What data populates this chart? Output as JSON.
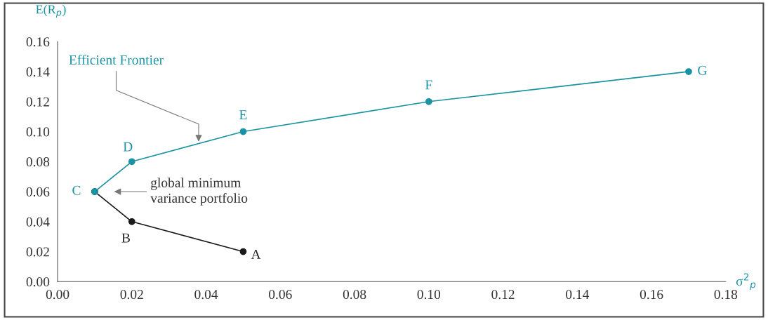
{
  "chart_data": {
    "type": "line",
    "xlabel": "σ$^{2}$$_{p}$",
    "ylabel": "E(R$_{p}$)",
    "series": [
      {
        "color": "#1a1a1a",
        "x": [
          0.01,
          0.02,
          0.05
        ],
        "values": [
          0.06,
          0.04,
          0.02
        ]
      },
      {
        "color": "#1a93a3",
        "x": [
          0.01,
          0.02,
          0.05,
          0.1,
          0.17
        ],
        "values": [
          0.06,
          0.08,
          0.1,
          0.12,
          0.14
        ]
      }
    ],
    "marker": "circle",
    "line_style": "solid",
    "grid": false,
    "legend": false,
    "xlim": [
      0,
      0.18
    ],
    "ylim": [
      0,
      0.16
    ],
    "xticks": [
      {
        "value": 0,
        "label": "0.00"
      },
      {
        "value": 0.02,
        "label": "0.02"
      },
      {
        "value": 0.04,
        "label": "0.04"
      },
      {
        "value": 0.06,
        "label": "0.06"
      },
      {
        "value": 0.08,
        "label": "0.08"
      },
      {
        "value": 0.1,
        "label": "0.10"
      },
      {
        "value": 0.12,
        "label": "0.12"
      },
      {
        "value": 0.14,
        "label": "0.14"
      },
      {
        "value": 0.16,
        "label": "0.16"
      },
      {
        "value": 0.18,
        "label": "0.18"
      }
    ],
    "yticks": [
      {
        "value": 0,
        "label": "0.00"
      },
      {
        "value": 0.02,
        "label": "0.02"
      },
      {
        "value": 0.04,
        "label": "0.04"
      },
      {
        "value": 0.06,
        "label": "0.06"
      },
      {
        "value": 0.08,
        "label": "0.08"
      },
      {
        "value": 0.1,
        "label": "0.10"
      },
      {
        "value": 0.12,
        "label": "0.12"
      },
      {
        "value": 0.14,
        "label": "0.14"
      },
      {
        "value": 0.16,
        "label": "0.16"
      }
    ],
    "annotations": [
      {
        "text": "A",
        "x": 0.05,
        "y": 0.02
      },
      {
        "text": "B",
        "x": 0.02,
        "y": 0.04
      },
      {
        "text": "C",
        "x": 0.01,
        "y": 0.06
      },
      {
        "text": "D",
        "x": 0.02,
        "y": 0.08
      },
      {
        "text": "E",
        "x": 0.05,
        "y": 0.1
      },
      {
        "text": "F",
        "x": 0.1,
        "y": 0.12
      },
      {
        "text": "G",
        "x": 0.17,
        "y": 0.14
      },
      {
        "text": "Efficient Frontier",
        "x": 0.038,
        "y": 0.092
      },
      "global minimum\nvariance portfolio"
    ]
  }
}
